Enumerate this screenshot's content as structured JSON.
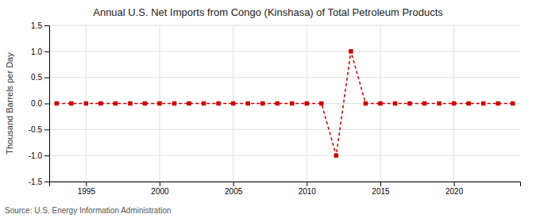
{
  "chart_data": {
    "type": "line",
    "title": "Annual U.S. Net Imports from Congo (Kinshasa) of Total Petroleum Products",
    "y_label": "Thousand Barrels per Day",
    "source": "Source: U.S. Energy Information Administration",
    "x": [
      1993,
      1994,
      1995,
      1996,
      1997,
      1998,
      1999,
      2000,
      2001,
      2002,
      2003,
      2004,
      2005,
      2006,
      2007,
      2008,
      2009,
      2010,
      2011,
      2012,
      2013,
      2014,
      2015,
      2016,
      2017,
      2018,
      2019,
      2020,
      2021,
      2022,
      2023,
      2024
    ],
    "values": [
      0,
      0,
      0,
      0,
      0,
      0,
      0,
      0,
      0,
      0,
      0,
      0,
      0,
      0,
      0,
      0,
      0,
      0,
      0,
      -1.0,
      1.0,
      0,
      0,
      0,
      0,
      0,
      0,
      0,
      0,
      0,
      0,
      0
    ],
    "color": "#cc0000",
    "marker": "square",
    "line_style": "dashed",
    "xlim": [
      1992.5,
      2024.5
    ],
    "xticks": [
      1995,
      2000,
      2005,
      2010,
      2015,
      2020
    ],
    "ylim": [
      -1.5,
      1.5
    ],
    "yticks": [
      -1.5,
      {
        "value": -1.0,
        "label": "-1.0"
      },
      -0.5,
      {
        "value": 0.0,
        "label": "0.0"
      },
      0.5,
      {
        "value": 1.0,
        "label": "1.0"
      },
      1.5
    ],
    "grid": true
  }
}
